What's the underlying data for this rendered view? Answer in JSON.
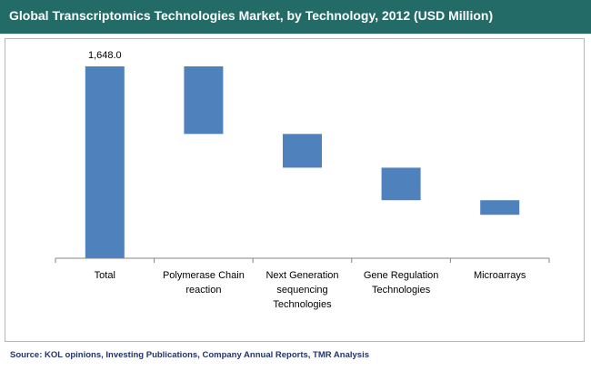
{
  "title": "Global Transcriptomics Technologies Market, by Technology, 2012 (USD Million)",
  "source": "Source: KOL opinions, Investing Publications, Company Annual Reports, TMR Analysis",
  "colors": {
    "header": "#236b67",
    "bar": "#4f81bd",
    "source_text": "#22346a"
  },
  "chart_data": {
    "type": "bar",
    "variant": "waterfall",
    "categories": [
      "Total",
      "Polymerase Chain reaction",
      "Next Generation sequencing Technologies",
      "Gene Regulation Technologies",
      "Microarrays"
    ],
    "category_lines": [
      [
        "Total"
      ],
      [
        "Polymerase Chain",
        "reaction"
      ],
      [
        "Next Generation",
        "sequencing",
        "Technologies"
      ],
      [
        "Gene Regulation",
        "Technologies"
      ],
      [
        "Microarrays"
      ]
    ],
    "values": [
      1648.0,
      580,
      290,
      280,
      125
    ],
    "data_labels": [
      "1,648.0",
      "",
      "",
      "",
      ""
    ],
    "ylim": [
      0,
      1648.0
    ],
    "grid": false,
    "legend": "none"
  }
}
